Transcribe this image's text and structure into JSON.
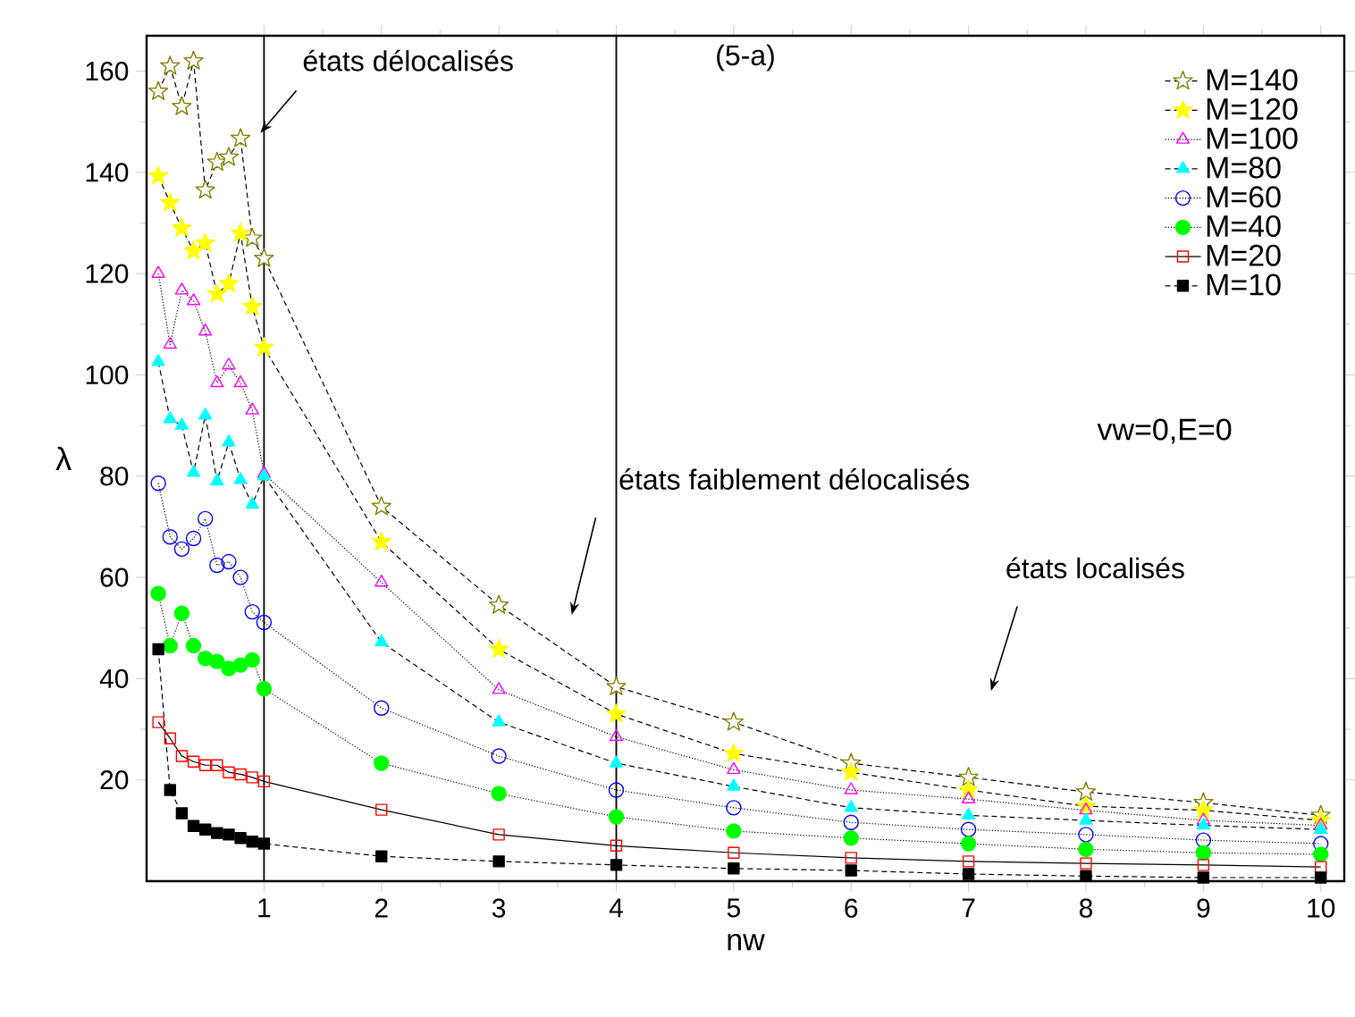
{
  "chart_data": {
    "type": "line",
    "title": "(5-a)",
    "xlabel": "nw",
    "ylabel": "λ",
    "x": [
      0.1,
      0.2,
      0.3,
      0.4,
      0.5,
      0.6,
      0.7,
      0.8,
      0.9,
      1,
      2,
      3,
      4,
      5,
      6,
      7,
      8,
      9,
      10
    ],
    "xlim": [
      0,
      10.2
    ],
    "ylim": [
      0,
      167
    ],
    "xticks": [
      1,
      2,
      3,
      4,
      5,
      6,
      7,
      8,
      9,
      10
    ],
    "yticks": [
      20,
      40,
      60,
      80,
      100,
      120,
      140,
      160
    ],
    "legend": "top right",
    "grid": false,
    "series": [
      {
        "name": "M=140",
        "color": "#808000",
        "marker": "star",
        "line_style": "dashed",
        "values": [
          156,
          161,
          153,
          162,
          136.5,
          142,
          143,
          146.7,
          127,
          123,
          74,
          54.5,
          38.4,
          31.4,
          23.3,
          20.5,
          17.6,
          15.5,
          13
        ]
      },
      {
        "name": "M=120",
        "color": "#ffff00",
        "marker": "star",
        "line_style": "dashed",
        "values": [
          139.3,
          134,
          129,
          124.5,
          126,
          116,
          118,
          128,
          113.5,
          105.4,
          67,
          45.8,
          33,
          25.2,
          21.5,
          18,
          14.8,
          14,
          12
        ]
      },
      {
        "name": "M=100",
        "color": "#ff00ff",
        "marker": "triangle",
        "line_style": "dotted",
        "values": [
          120,
          106,
          116.7,
          114.6,
          108.6,
          98.4,
          101.9,
          98.4,
          93,
          80.5,
          59,
          37.8,
          28.5,
          22,
          18,
          16.2,
          14,
          12,
          11
        ]
      },
      {
        "name": "M=80",
        "color": "#00ffff",
        "marker": "triangle",
        "line_style": "dashed",
        "values": [
          102.6,
          91.3,
          90,
          80.7,
          92,
          79,
          86.7,
          79.3,
          74.4,
          80,
          47.2,
          31.4,
          23.3,
          18.7,
          14.5,
          13,
          12,
          11,
          10.2
        ]
      },
      {
        "name": "M=60",
        "color": "#0000ff",
        "marker": "circle",
        "line_style": "dotted",
        "values": [
          78.6,
          68,
          65.6,
          67.7,
          71.6,
          62.4,
          63.1,
          60,
          53.2,
          51.1,
          34.2,
          24.7,
          18,
          14.5,
          11.6,
          10.2,
          9.2,
          8.1,
          7.4
        ]
      },
      {
        "name": "M=40",
        "color": "#00ff00",
        "marker": "circle",
        "line_style": "dotted",
        "values": [
          56.8,
          46.5,
          52.9,
          46.5,
          44,
          43.4,
          42,
          42.7,
          43.7,
          38,
          23.3,
          17.3,
          12.7,
          9.9,
          8.5,
          7.4,
          6.3,
          5.6,
          5.3
        ]
      },
      {
        "name": "M=20",
        "color": "#ff0000",
        "marker": "square",
        "line_style": "solid",
        "values": [
          31.4,
          28.2,
          24.7,
          23.6,
          22.9,
          22.9,
          21.5,
          21.1,
          20.5,
          19.7,
          14.1,
          9.2,
          7,
          5.6,
          4.6,
          3.9,
          3.5,
          3.2,
          2.8
        ]
      },
      {
        "name": "M=10",
        "color": "#000000",
        "marker": "square",
        "line_style": "dashed",
        "values": [
          45.8,
          18,
          13.4,
          10.9,
          10.2,
          9.5,
          9.2,
          8.5,
          7.8,
          7.4,
          4.9,
          3.9,
          3.2,
          2.5,
          2.1,
          1.4,
          1,
          0.7,
          0.7
        ]
      }
    ],
    "ref_lines": [
      {
        "axis": "x",
        "value": 1
      },
      {
        "axis": "x",
        "value": 4
      }
    ],
    "annotations": [
      "états délocalisés",
      "états faiblement délocalisés",
      "états localisés",
      "vw=0,E=0"
    ]
  }
}
